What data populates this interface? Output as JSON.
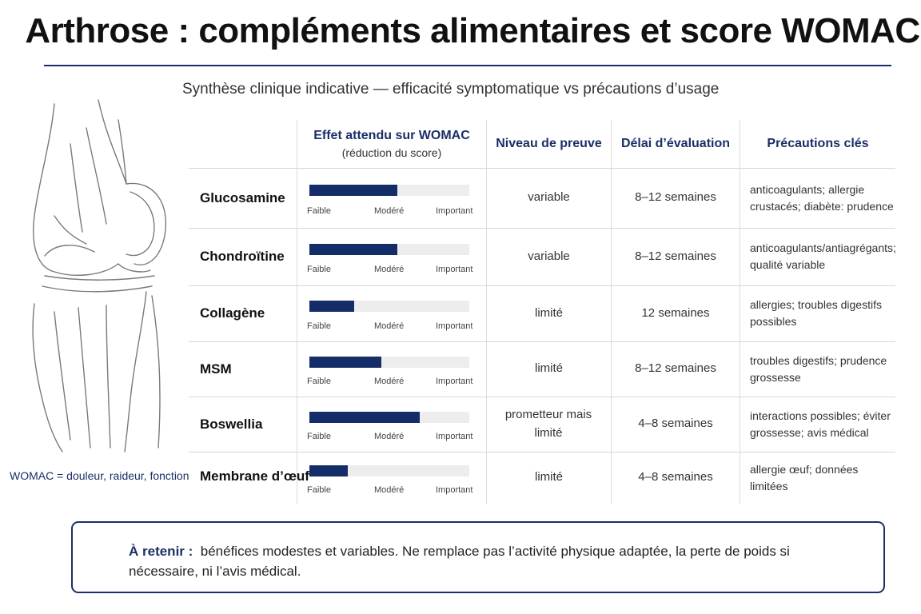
{
  "title": "Arthrose : compléments alimentaires et score WOMAC",
  "subtitle": "Synthèse clinique indicative — efficacité symptomatique vs précautions d’usage",
  "illustration": {
    "icon": "knee-joint-illustration",
    "caption": "WOMAC = douleur, raideur, fonction"
  },
  "colors": {
    "accent": "#1b2f66",
    "bar": "#142d69",
    "track": "#ededed"
  },
  "table": {
    "headers": {
      "effect": "Effet attendu sur WOMAC",
      "effect_sub": "(réduction du score)",
      "evidence": "Niveau de preuve",
      "delay": "Délai d’évaluation",
      "precautions": "Précautions clés"
    },
    "scale": {
      "low": "Faible",
      "mid": "Modéré",
      "high": "Important"
    },
    "rows": [
      {
        "name": "Glucosamine",
        "effect": 0.55,
        "evidence": "variable",
        "delay": "8–12 semaines",
        "precautions": "anticoagulants; allergie crustacés; diabète: prudence"
      },
      {
        "name": "Chondroïtine",
        "effect": 0.55,
        "evidence": "variable",
        "delay": "8–12 semaines",
        "precautions": "anticoagulants/antiagrégants; qualité variable"
      },
      {
        "name": "Collagène",
        "effect": 0.28,
        "evidence": "limité",
        "delay": "12 semaines",
        "precautions": "allergies; troubles digestifs possibles"
      },
      {
        "name": "MSM",
        "effect": 0.45,
        "evidence": "limité",
        "delay": "8–12 semaines",
        "precautions": "troubles digestifs; prudence grossesse"
      },
      {
        "name": "Boswellia",
        "effect": 0.69,
        "evidence": "prometteur mais limité",
        "delay": "4–8 semaines",
        "precautions": "interactions possibles; éviter grossesse; avis médical"
      },
      {
        "name": "Membrane d’œuf",
        "effect": 0.24,
        "evidence": "limité",
        "delay": "4–8 semaines",
        "precautions": "allergie œuf; données limitées"
      }
    ]
  },
  "note": {
    "label": "À retenir :",
    "text": "bénéfices modestes et variables. Ne remplace pas l’activité physique adaptée, la perte de poids si nécessaire, ni l’avis médical."
  }
}
